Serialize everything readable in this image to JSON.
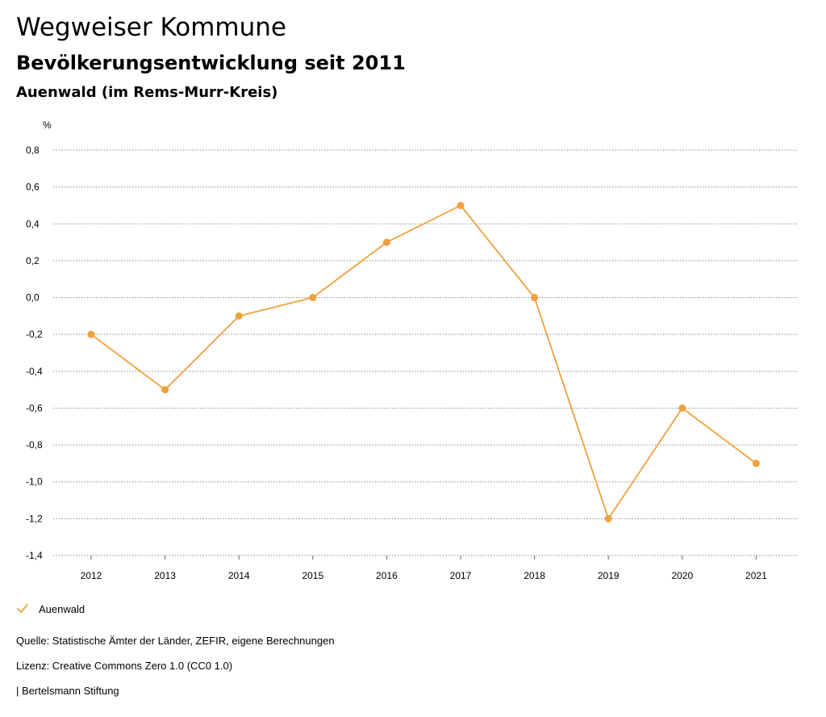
{
  "header": {
    "title": "Wegweiser Kommune",
    "subtitle": "Bevölkerungsentwicklung seit 2011",
    "region": "Auenwald (im Rems-Murr-Kreis)"
  },
  "chart_data": {
    "type": "line",
    "title": "Bevölkerungsentwicklung seit 2011",
    "xlabel": "",
    "ylabel": "%",
    "categories": [
      "2012",
      "2013",
      "2014",
      "2015",
      "2016",
      "2017",
      "2018",
      "2019",
      "2020",
      "2021"
    ],
    "series": [
      {
        "name": "Auenwald",
        "color": "#f0a03c",
        "values": [
          -0.2,
          -0.5,
          -0.1,
          0.0,
          0.3,
          0.5,
          0.0,
          -1.2,
          -0.6,
          -0.9
        ]
      }
    ],
    "ylim": [
      -1.4,
      0.8
    ],
    "yticks": [
      0.8,
      0.6,
      0.4,
      0.2,
      0.0,
      -0.2,
      -0.4,
      -0.6,
      -0.8,
      -1.0,
      -1.2,
      -1.4
    ],
    "ytick_labels": [
      "0,8",
      "0,6",
      "0,4",
      "0,2",
      "0,0",
      "-0,2",
      "-0,4",
      "-0,6",
      "-0,8",
      "-1,0",
      "-1,2",
      "-1,4"
    ],
    "grid": true,
    "legend_position": "bottom-left"
  },
  "legend": {
    "label": "Auenwald",
    "icon": "check-icon"
  },
  "footer": {
    "source": "Quelle: Statistische Ämter der Länder, ZEFIR, eigene Berechnungen",
    "license": "Lizenz: Creative Commons Zero 1.0 (CC0 1.0)",
    "publisher": "| Bertelsmann Stiftung"
  }
}
